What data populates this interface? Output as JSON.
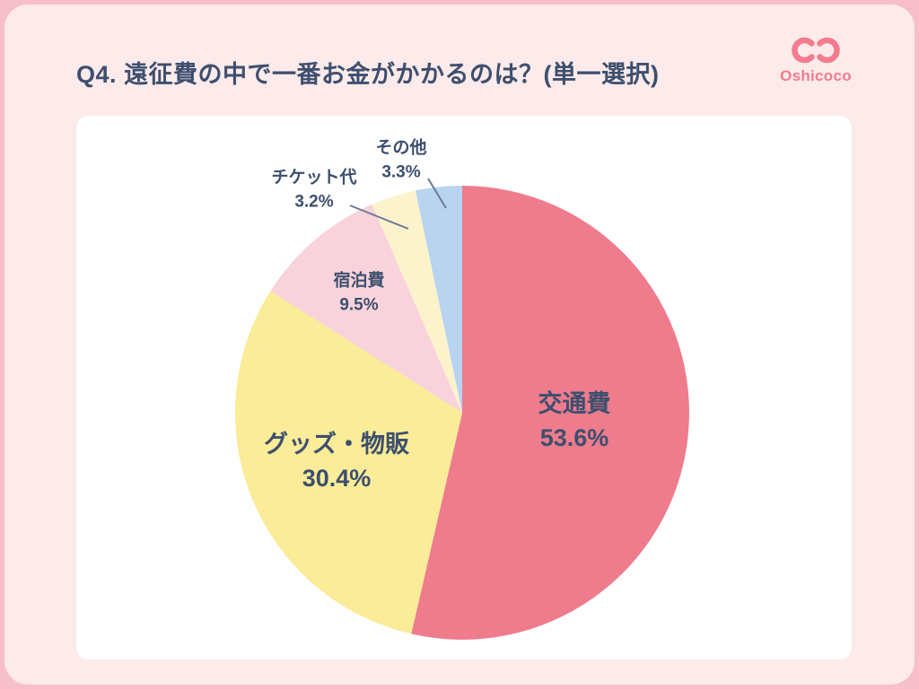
{
  "page": {
    "title": "Q4. 遠征費の中で一番お金がかかるのは？(単一選択)",
    "logo_text": "Oshicoco"
  },
  "colors": {
    "background": "#fdeaea",
    "frame": "#f6bfc9",
    "ink": "#3d4f6e",
    "brand": "#f27b8e",
    "card": "#ffffff"
  },
  "chart_data": {
    "type": "pie",
    "title": "Q4. 遠征費の中で一番お金がかかるのは？(単一選択)",
    "direction": "clockwise",
    "start_angle_deg": 0,
    "legend": "none",
    "slices": [
      {
        "label": "交通費",
        "value": 53.6,
        "pct_label": "53.6%",
        "color": "#ee7c8c",
        "label_position": "inside"
      },
      {
        "label": "グッズ・物販",
        "value": 30.4,
        "pct_label": "30.4%",
        "color": "#faec98",
        "label_position": "inside"
      },
      {
        "label": "宿泊費",
        "value": 9.5,
        "pct_label": "9.5%",
        "color": "#f8d3db",
        "label_position": "inside"
      },
      {
        "label": "チケット代",
        "value": 3.2,
        "pct_label": "3.2%",
        "color": "#fcf3cd",
        "label_position": "outside"
      },
      {
        "label": "その他",
        "value": 3.3,
        "pct_label": "3.3%",
        "color": "#b8d4ef",
        "label_position": "outside"
      }
    ]
  }
}
